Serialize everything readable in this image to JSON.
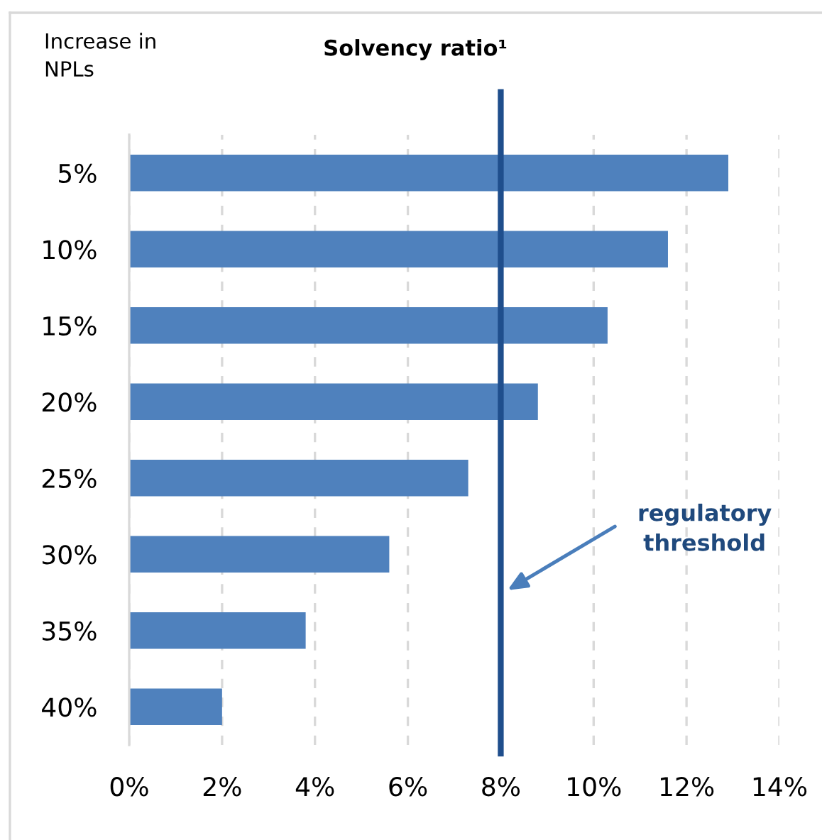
{
  "chart_data": {
    "type": "bar",
    "orientation": "horizontal",
    "title": "Solvency ratio¹",
    "ylabel": "Increase in\nNPLs",
    "categories": [
      "5%",
      "10%",
      "15%",
      "20%",
      "25%",
      "30%",
      "35%",
      "40%"
    ],
    "values": [
      12.9,
      11.6,
      10.3,
      8.8,
      7.3,
      5.6,
      3.8,
      2.0
    ],
    "color": "#4f81bd",
    "xlim": [
      0,
      14
    ],
    "xticks": [
      {
        "value": 0,
        "label": "0%"
      },
      {
        "value": 2,
        "label": "2%"
      },
      {
        "value": 4,
        "label": "4%"
      },
      {
        "value": 6,
        "label": "6%"
      },
      {
        "value": 8,
        "label": "8%"
      },
      {
        "value": 10,
        "label": "10%"
      },
      {
        "value": 12,
        "label": "12%"
      },
      {
        "value": 14,
        "label": "14%"
      }
    ],
    "grid": "x",
    "ref_lines": [
      {
        "axis": "x",
        "value": 8,
        "color": "#1f4e8c",
        "label": "regulatory\nthreshold"
      }
    ]
  }
}
